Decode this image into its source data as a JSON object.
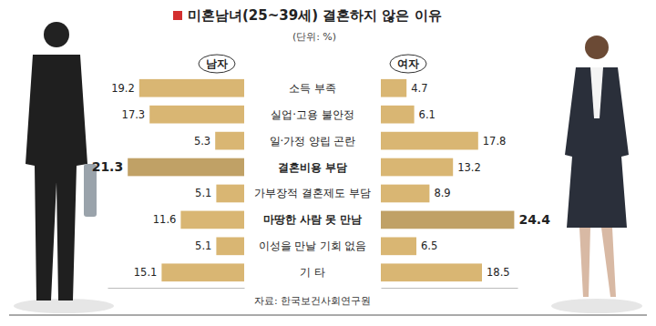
{
  "chart_data": {
    "type": "bar",
    "orientation": "horizontal",
    "title": "미혼남녀(25~39세) 결혼하지 않은 이유",
    "subtitle": "(단위: %)",
    "categories": [
      "소득 부족",
      "실업·고용 불안정",
      "일·가정 양립 곤란",
      "결혼비용 부담",
      "가부장적 결혼제도 부담",
      "마땅한 사람 못 만남",
      "이성을 만날 기회 없음",
      "기 타"
    ],
    "series": [
      {
        "name": "남자",
        "color": "#d9b673",
        "values": [
          19.2,
          17.3,
          5.3,
          21.3,
          5.1,
          11.6,
          5.1,
          15.1
        ]
      },
      {
        "name": "여자",
        "color": "#d9b673",
        "values": [
          4.7,
          6.1,
          17.8,
          13.2,
          8.9,
          24.4,
          6.5,
          18.5
        ]
      }
    ],
    "xlim": [
      0,
      25
    ],
    "tick_labels": false,
    "data_labels": true,
    "annotations": [
      "자료: 한국보건사회연구원"
    ]
  }
}
